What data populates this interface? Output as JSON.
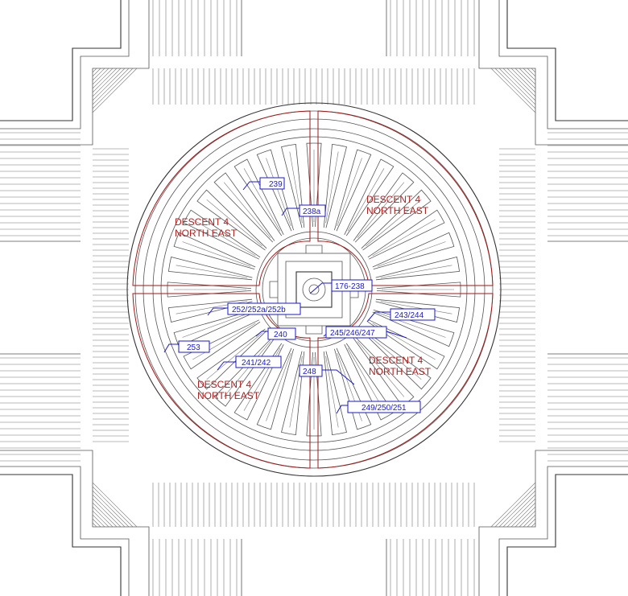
{
  "drawing": {
    "zone_labels": [
      {
        "line1": "DESCENT 4",
        "line2": "NORTH EAST"
      },
      {
        "line1": "DESCENT 4",
        "line2": "NORTH EAST"
      },
      {
        "line1": "DESCENT 4",
        "line2": "NORTH EAST"
      },
      {
        "line1": "DESCENT 4",
        "line2": "NORTH EAST"
      }
    ],
    "tags": [
      "239",
      "238a",
      "176-238",
      "252/252a/252b",
      "243/244",
      "240",
      "245/246/247",
      "253",
      "241/242",
      "248",
      "249/250/251"
    ],
    "colors": {
      "linework": "#555555",
      "zone_outline": "#a01818",
      "tag": "#1a1acc"
    }
  }
}
